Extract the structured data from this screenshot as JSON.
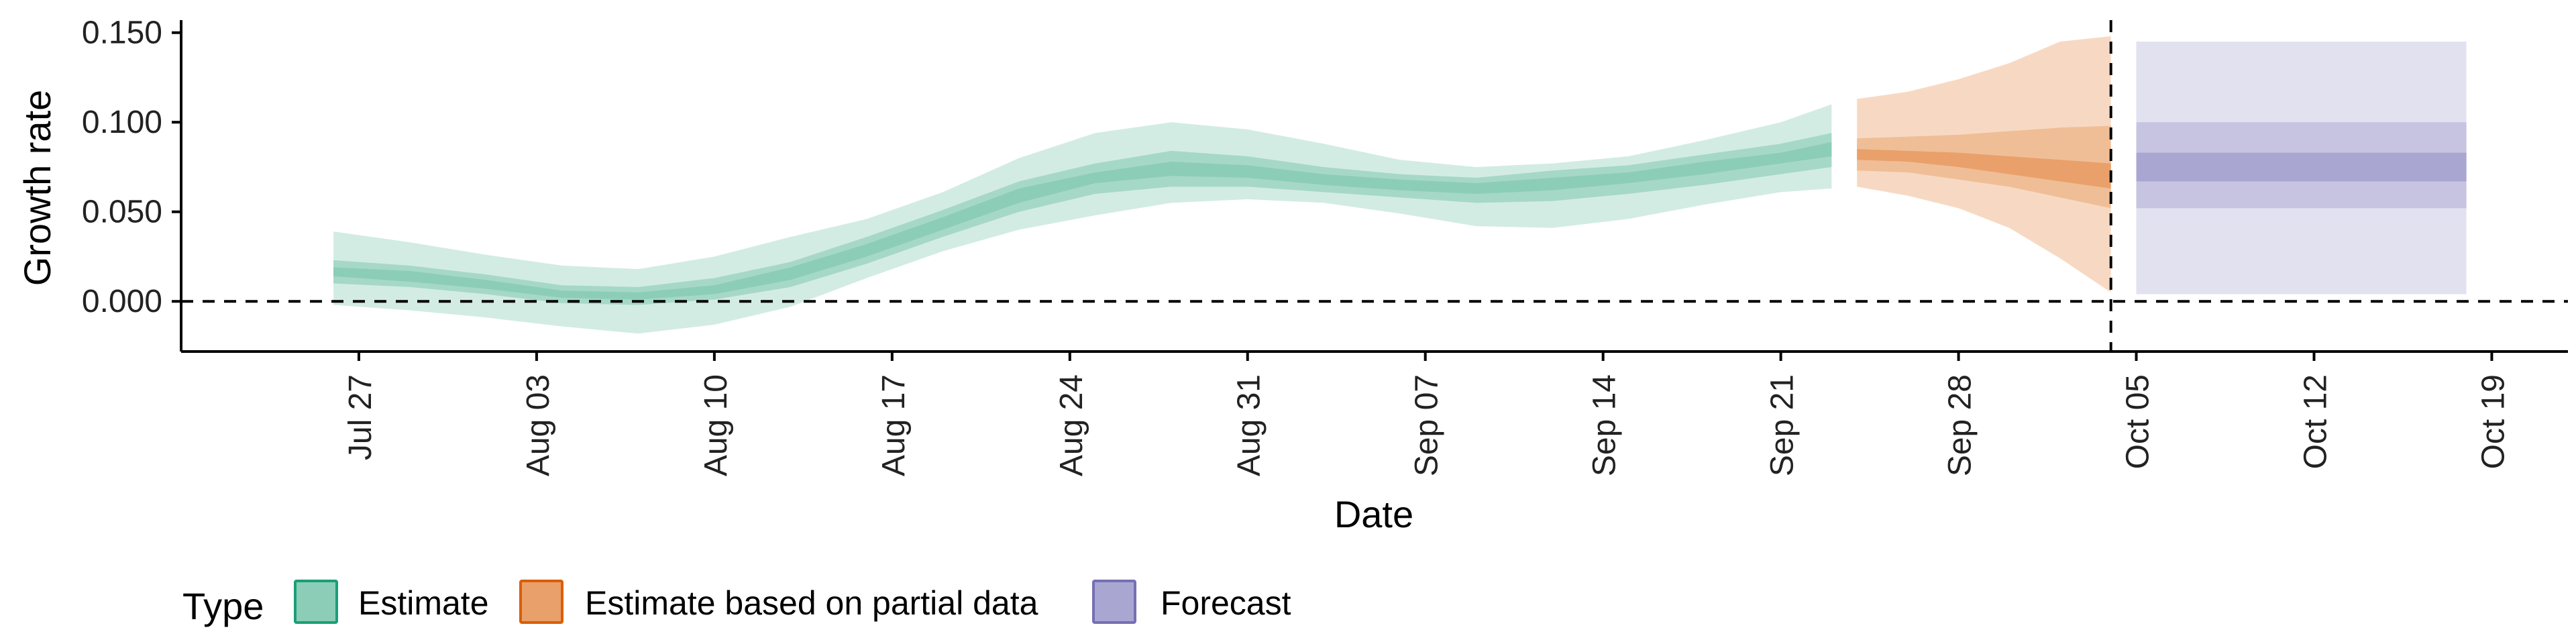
{
  "chart_data": {
    "type": "area",
    "title": "",
    "xlabel": "Date",
    "ylabel": "Growth rate",
    "x_range": [
      "2021-07-20",
      "2021-10-22"
    ],
    "ylim": [
      -0.028,
      0.157
    ],
    "x_ticks": [
      {
        "date": "2021-07-27",
        "label": "Jul 27"
      },
      {
        "date": "2021-08-03",
        "label": "Aug 03"
      },
      {
        "date": "2021-08-10",
        "label": "Aug 10"
      },
      {
        "date": "2021-08-17",
        "label": "Aug 17"
      },
      {
        "date": "2021-08-24",
        "label": "Aug 24"
      },
      {
        "date": "2021-08-31",
        "label": "Aug 31"
      },
      {
        "date": "2021-09-07",
        "label": "Sep 07"
      },
      {
        "date": "2021-09-14",
        "label": "Sep 14"
      },
      {
        "date": "2021-09-21",
        "label": "Sep 21"
      },
      {
        "date": "2021-09-28",
        "label": "Sep 28"
      },
      {
        "date": "2021-10-05",
        "label": "Oct 05"
      },
      {
        "date": "2021-10-12",
        "label": "Oct 12"
      },
      {
        "date": "2021-10-19",
        "label": "Oct 19"
      }
    ],
    "y_ticks": [
      {
        "value": 0.0,
        "label": "0.000"
      },
      {
        "value": 0.05,
        "label": "0.050"
      },
      {
        "value": 0.1,
        "label": "0.100"
      },
      {
        "value": 0.15,
        "label": "0.150"
      }
    ],
    "reference_lines": {
      "horizontal_zero": 0,
      "forecast_start_date": "2021-10-04"
    },
    "legend": {
      "title": "Type",
      "position": "bottom-left",
      "items": [
        {
          "label": "Estimate",
          "series_ref": "Estimate"
        },
        {
          "label": "Estimate based on partial data",
          "series_ref": "Estimate based on partial data"
        },
        {
          "label": "Forecast",
          "series_ref": "Forecast"
        }
      ]
    },
    "series": [
      {
        "name": "Estimate",
        "color": "#1b9e77",
        "fill_outer": "#d3ece3",
        "fill_mid": "#a6d8c7",
        "fill_inner": "#8ccdb7",
        "points": [
          {
            "date": "2021-07-26",
            "lo90": -0.002,
            "lo50": 0.01,
            "lo20": 0.014,
            "median": 0.016,
            "hi20": 0.019,
            "hi50": 0.023,
            "hi90": 0.039
          },
          {
            "date": "2021-07-29",
            "lo90": -0.005,
            "lo50": 0.008,
            "lo20": 0.011,
            "median": 0.014,
            "hi20": 0.017,
            "hi50": 0.02,
            "hi90": 0.033
          },
          {
            "date": "2021-08-01",
            "lo90": -0.009,
            "lo50": 0.004,
            "lo20": 0.007,
            "median": 0.009,
            "hi20": 0.012,
            "hi50": 0.015,
            "hi90": 0.026
          },
          {
            "date": "2021-08-04",
            "lo90": -0.014,
            "lo50": -0.001,
            "lo20": 0.002,
            "median": 0.004,
            "hi20": 0.006,
            "hi50": 0.009,
            "hi90": 0.02
          },
          {
            "date": "2021-08-07",
            "lo90": -0.018,
            "lo50": -0.002,
            "lo20": 0.001,
            "median": 0.002,
            "hi20": 0.005,
            "hi50": 0.008,
            "hi90": 0.018
          },
          {
            "date": "2021-08-10",
            "lo90": -0.013,
            "lo50": 0.001,
            "lo20": 0.004,
            "median": 0.006,
            "hi20": 0.009,
            "hi50": 0.013,
            "hi90": 0.025
          },
          {
            "date": "2021-08-13",
            "lo90": -0.003,
            "lo50": 0.008,
            "lo20": 0.012,
            "median": 0.015,
            "hi20": 0.019,
            "hi50": 0.022,
            "hi90": 0.036
          },
          {
            "date": "2021-08-16",
            "lo90": 0.013,
            "lo50": 0.021,
            "lo20": 0.025,
            "median": 0.028,
            "hi20": 0.032,
            "hi50": 0.036,
            "hi90": 0.046
          },
          {
            "date": "2021-08-19",
            "lo90": 0.028,
            "lo50": 0.036,
            "lo20": 0.04,
            "median": 0.043,
            "hi20": 0.047,
            "hi50": 0.051,
            "hi90": 0.061
          },
          {
            "date": "2021-08-22",
            "lo90": 0.04,
            "lo50": 0.05,
            "lo20": 0.055,
            "median": 0.059,
            "hi20": 0.063,
            "hi50": 0.067,
            "hi90": 0.08
          },
          {
            "date": "2021-08-25",
            "lo90": 0.048,
            "lo50": 0.06,
            "lo20": 0.066,
            "median": 0.069,
            "hi20": 0.072,
            "hi50": 0.077,
            "hi90": 0.094
          },
          {
            "date": "2021-08-28",
            "lo90": 0.055,
            "lo50": 0.064,
            "lo20": 0.07,
            "median": 0.074,
            "hi20": 0.078,
            "hi50": 0.084,
            "hi90": 0.1
          },
          {
            "date": "2021-08-31",
            "lo90": 0.057,
            "lo50": 0.064,
            "lo20": 0.069,
            "median": 0.072,
            "hi20": 0.076,
            "hi50": 0.081,
            "hi90": 0.096
          },
          {
            "date": "2021-09-03",
            "lo90": 0.055,
            "lo50": 0.061,
            "lo20": 0.065,
            "median": 0.068,
            "hi20": 0.071,
            "hi50": 0.075,
            "hi90": 0.088
          },
          {
            "date": "2021-09-06",
            "lo90": 0.049,
            "lo50": 0.058,
            "lo20": 0.062,
            "median": 0.065,
            "hi20": 0.068,
            "hi50": 0.071,
            "hi90": 0.079
          },
          {
            "date": "2021-09-09",
            "lo90": 0.042,
            "lo50": 0.055,
            "lo20": 0.06,
            "median": 0.063,
            "hi20": 0.066,
            "hi50": 0.069,
            "hi90": 0.075
          },
          {
            "date": "2021-09-12",
            "lo90": 0.041,
            "lo50": 0.056,
            "lo20": 0.062,
            "median": 0.066,
            "hi20": 0.069,
            "hi50": 0.073,
            "hi90": 0.077
          },
          {
            "date": "2021-09-15",
            "lo90": 0.046,
            "lo50": 0.06,
            "lo20": 0.066,
            "median": 0.069,
            "hi20": 0.072,
            "hi50": 0.076,
            "hi90": 0.081
          },
          {
            "date": "2021-09-18",
            "lo90": 0.054,
            "lo50": 0.065,
            "lo20": 0.071,
            "median": 0.075,
            "hi20": 0.078,
            "hi50": 0.082,
            "hi90": 0.09
          },
          {
            "date": "2021-09-21",
            "lo90": 0.061,
            "lo50": 0.071,
            "lo20": 0.077,
            "median": 0.08,
            "hi20": 0.083,
            "hi50": 0.088,
            "hi90": 0.1
          },
          {
            "date": "2021-09-23",
            "lo90": 0.063,
            "lo50": 0.075,
            "lo20": 0.081,
            "median": 0.085,
            "hi20": 0.089,
            "hi50": 0.094,
            "hi90": 0.11
          }
        ]
      },
      {
        "name": "Estimate based on partial data",
        "color": "#d95f02",
        "fill_outer": "#f7d9c3",
        "fill_mid": "#efbe97",
        "fill_inner": "#e9a06a",
        "points": [
          {
            "date": "2021-09-24",
            "lo90": 0.064,
            "lo50": 0.073,
            "lo20": 0.079,
            "median": 0.082,
            "hi20": 0.085,
            "hi50": 0.091,
            "hi90": 0.113
          },
          {
            "date": "2021-09-26",
            "lo90": 0.059,
            "lo50": 0.072,
            "lo20": 0.078,
            "median": 0.081,
            "hi20": 0.084,
            "hi50": 0.092,
            "hi90": 0.117
          },
          {
            "date": "2021-09-28",
            "lo90": 0.052,
            "lo50": 0.068,
            "lo20": 0.075,
            "median": 0.079,
            "hi20": 0.083,
            "hi50": 0.093,
            "hi90": 0.124
          },
          {
            "date": "2021-09-30",
            "lo90": 0.041,
            "lo50": 0.064,
            "lo20": 0.071,
            "median": 0.076,
            "hi20": 0.081,
            "hi50": 0.095,
            "hi90": 0.133
          },
          {
            "date": "2021-10-02",
            "lo90": 0.024,
            "lo50": 0.058,
            "lo20": 0.067,
            "median": 0.073,
            "hi20": 0.079,
            "hi50": 0.097,
            "hi90": 0.145
          },
          {
            "date": "2021-10-04",
            "lo90": 0.005,
            "lo50": 0.052,
            "lo20": 0.063,
            "median": 0.07,
            "hi20": 0.077,
            "hi50": 0.098,
            "hi90": 0.148
          }
        ]
      },
      {
        "name": "Forecast",
        "color": "#7570b3",
        "fill_outer": "#e2e1ef",
        "fill_mid": "#c6c4e0",
        "fill_inner": "#a9a6d2",
        "points": [
          {
            "date": "2021-10-05",
            "lo90": 0.004,
            "lo50": 0.052,
            "lo20": 0.067,
            "median": 0.074,
            "hi20": 0.083,
            "hi50": 0.1,
            "hi90": 0.145
          },
          {
            "date": "2021-10-18",
            "lo90": 0.004,
            "lo50": 0.052,
            "lo20": 0.067,
            "median": 0.074,
            "hi20": 0.083,
            "hi50": 0.1,
            "hi90": 0.145
          }
        ]
      }
    ]
  }
}
